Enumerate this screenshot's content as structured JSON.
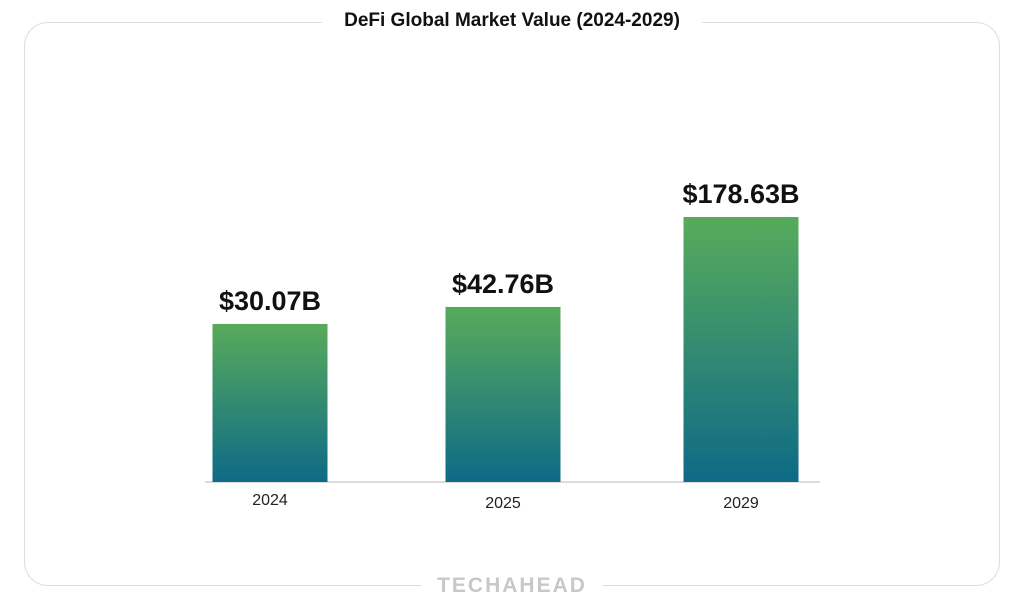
{
  "chart_data": {
    "type": "bar",
    "title": "DeFi Global Market Value (2024-2029)",
    "categories": [
      "2024",
      "2025",
      "2029"
    ],
    "values": [
      30.07,
      42.76,
      178.63
    ],
    "data_labels": [
      "$30.07B",
      "$42.76B",
      "$178.63B"
    ],
    "xlabel": "",
    "ylabel": "",
    "unit": "USD billions",
    "grid": false,
    "legend": "none",
    "colors": {
      "bar_top": "#58ab5b",
      "bar_bottom": "#0e6a87",
      "axis": "#d0d0d0"
    }
  },
  "branding": {
    "logo_text": "TECHAHEAD"
  }
}
